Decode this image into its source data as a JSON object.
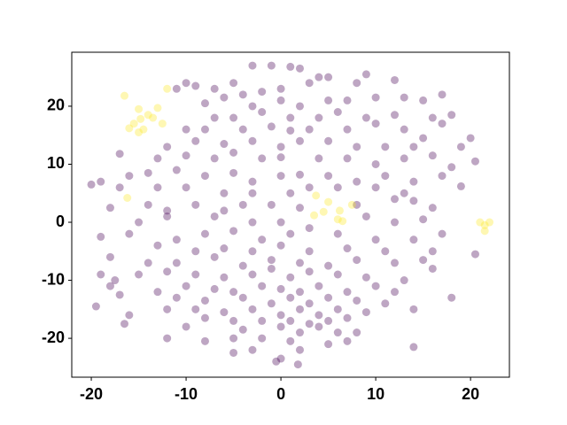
{
  "chart_data": {
    "type": "scatter",
    "xlim": [
      -22.06,
      24.1
    ],
    "ylim": [
      -26.7,
      29.3
    ],
    "xticks": [
      -20,
      -10,
      0,
      10,
      20
    ],
    "yticks": [
      -20,
      -10,
      0,
      10,
      20
    ],
    "alpha": 0.35,
    "series": [
      {
        "color": "#440154",
        "x": [
          -3,
          -1,
          1,
          2,
          -5,
          -7,
          -10,
          -9,
          -11,
          -4,
          -6,
          -2,
          0,
          3,
          4,
          5,
          8,
          9,
          12,
          -8,
          -3,
          0,
          2,
          5,
          7,
          10,
          13,
          15,
          17,
          -7,
          -5,
          -2,
          1,
          4,
          6,
          9,
          12,
          16,
          18,
          -10,
          -8,
          -4,
          -1,
          1,
          3,
          7,
          10,
          13,
          17,
          20,
          -12,
          -9,
          -6,
          -3,
          0,
          2,
          5,
          8,
          11,
          14,
          15,
          19,
          -17,
          -13,
          -10,
          -7,
          -5,
          -2,
          0,
          4,
          7,
          10,
          13,
          16,
          18,
          20.5,
          -19,
          -16,
          -14,
          -11,
          -8,
          -5,
          -3,
          0,
          2,
          5,
          8,
          11,
          14,
          17,
          -20,
          -17,
          -13,
          -10,
          -6,
          -3,
          1,
          3,
          6,
          10,
          13,
          19,
          -18,
          -14,
          -12,
          -9,
          -6,
          -4,
          -1,
          2,
          8,
          12,
          14,
          16,
          -15,
          -12,
          -7,
          -3,
          0,
          3,
          9,
          12,
          15,
          -19,
          -16,
          -11,
          -8,
          -5,
          -2,
          1,
          6,
          10,
          14,
          17,
          -13,
          -9,
          -6,
          -3,
          0,
          3,
          7,
          11,
          16,
          20.5,
          -18,
          -14,
          -11,
          -7,
          -4,
          -1,
          2,
          5,
          8,
          12,
          15,
          -19,
          -17.5,
          -15,
          -12,
          -9,
          -6,
          -3,
          -1,
          1,
          3,
          6,
          9,
          13,
          16,
          -18,
          -13,
          -10,
          -7,
          -5,
          -2,
          0,
          2,
          4,
          7,
          10,
          12,
          -17,
          -11,
          -8,
          -4,
          -1,
          1,
          3,
          5,
          8,
          11,
          18,
          -19.5,
          -12,
          -9,
          -6,
          -3,
          0,
          2,
          4,
          6,
          9,
          14,
          -16,
          -8,
          -5,
          -2,
          1,
          3,
          5,
          7,
          -16.5,
          -10,
          -4,
          0,
          2,
          4,
          6,
          8,
          -12,
          -8,
          -5,
          -2,
          1,
          5,
          7,
          14,
          -5,
          -3,
          0,
          2,
          -0.5,
          1.8
        ],
        "y": [
          27,
          27,
          26.8,
          26.5,
          24,
          23,
          24,
          23.5,
          23,
          22,
          21.5,
          22.5,
          23,
          24,
          25,
          25,
          24,
          25.5,
          24.5,
          20.5,
          20,
          21,
          20,
          21,
          21,
          21.5,
          21.5,
          21,
          22,
          18,
          18,
          19,
          18,
          18,
          19,
          18,
          18.5,
          18,
          18.5,
          16,
          16,
          16,
          16.5,
          15.8,
          16,
          16,
          17,
          16,
          17,
          14.5,
          13,
          14,
          13.5,
          14,
          13,
          14,
          14,
          13,
          13,
          13,
          14.5,
          13,
          11.8,
          11,
          11.5,
          11,
          12,
          11,
          11.2,
          11,
          11,
          10,
          11,
          11.5,
          9.5,
          10.5,
          7,
          8,
          8.5,
          9,
          8,
          8.5,
          7,
          8,
          8.2,
          8,
          7,
          8,
          7,
          8,
          6.5,
          6,
          6,
          6,
          5,
          5,
          5,
          6,
          6,
          6,
          5,
          6.2,
          2.5,
          3,
          2,
          3,
          2,
          3,
          3,
          2.5,
          3,
          4,
          3.7,
          2.5,
          0,
          1,
          1,
          0,
          0,
          -1,
          1,
          0,
          0.5,
          -2.5,
          -2,
          -3,
          -2,
          -1.5,
          -3,
          -2,
          -2,
          -3,
          -3,
          -2,
          -4,
          -5,
          -4.5,
          -5,
          -4,
          -5,
          -4.5,
          -5,
          -5,
          -5.5,
          -6,
          -7,
          -7,
          -6,
          -7.5,
          -6.5,
          -7,
          -7.5,
          -6.5,
          -7,
          -6.5,
          -9,
          -10,
          -9,
          -8.5,
          -9,
          -9.5,
          -9,
          -8,
          -9.5,
          -8.5,
          -9,
          -9.5,
          -10,
          -8,
          -11,
          -12,
          -11,
          -11.5,
          -12,
          -11,
          -11.5,
          -12,
          -11,
          -12,
          -11,
          -12,
          -12.5,
          -13,
          -13.5,
          -13,
          -14,
          -13,
          -14,
          -13,
          -13.5,
          -14,
          -13,
          -14.5,
          -15,
          -15,
          -15.5,
          -15,
          -16,
          -15,
          -16,
          -15,
          -15.5,
          -15,
          -16,
          -16.5,
          -17,
          -17,
          -17,
          -17.5,
          -17,
          -16.5,
          -17.5,
          -18,
          -18.5,
          -18,
          -19,
          -18,
          -19,
          -19,
          -20,
          -20.5,
          -20,
          -20,
          -20.5,
          -21,
          -20.5,
          -21.5,
          -22.5,
          -22,
          -23.5,
          -22,
          -24,
          -24.5
        ]
      },
      {
        "color": "#fde725",
        "x": [
          -16.5,
          -12,
          -15,
          -14,
          -13.5,
          -15.5,
          -16,
          -14.5,
          -15,
          -13,
          -14.8,
          -12.5,
          -16.2,
          3.7,
          5,
          3.5,
          4.5,
          6.2,
          7.5,
          6,
          6.5,
          21,
          21.5,
          22,
          21.5
        ],
        "y": [
          21.8,
          23,
          19.5,
          18.5,
          18,
          17,
          16.2,
          16,
          15.5,
          19.7,
          17.8,
          17,
          4.2,
          4.6,
          3.5,
          1.2,
          1.8,
          2,
          3,
          0.5,
          0.2,
          0,
          -0.5,
          0,
          -1.5
        ]
      }
    ]
  }
}
